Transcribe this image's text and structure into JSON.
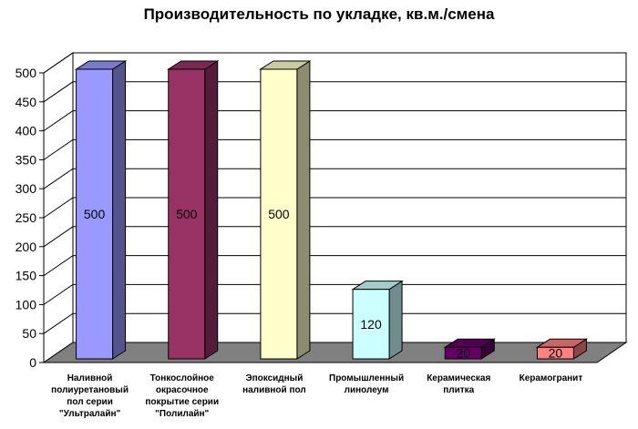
{
  "chart_data": {
    "type": "bar",
    "title": "Производительность по укладке, кв.м./смена",
    "categories": [
      [
        "Наливной",
        "полиуретановый",
        "пол серии",
        "\"Ультралайн\""
      ],
      [
        "Тонкослойное",
        "окрасочное",
        "покрытие серии",
        "\"Полилайн\""
      ],
      [
        "Эпоксидный",
        "наливной пол"
      ],
      [
        "Промышленный",
        "линолеум"
      ],
      [
        "Керамическая",
        "плитка"
      ],
      [
        "Керамогранит"
      ]
    ],
    "values": [
      500,
      500,
      500,
      120,
      20,
      20
    ],
    "data_labels": [
      "500",
      "500",
      "500",
      "120",
      "20",
      "20"
    ],
    "colors": [
      "#9999ff",
      "#993366",
      "#ffffcc",
      "#ccffff",
      "#660066",
      "#ff8080"
    ],
    "ylim": [
      0,
      500
    ],
    "yticks": [
      0,
      50,
      100,
      150,
      200,
      250,
      300,
      350,
      400,
      450,
      500
    ],
    "grid": true,
    "legend": "none",
    "floor_color": "#808080"
  }
}
